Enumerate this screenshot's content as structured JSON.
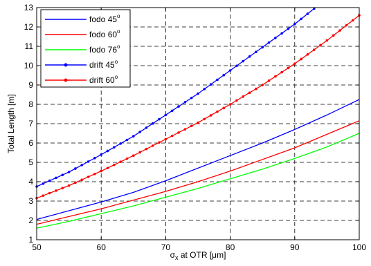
{
  "chart_data": {
    "type": "line",
    "xlabel_prefix": "σ",
    "xlabel_sub": "x",
    "xlabel_suffix": " at OTR [μm]",
    "ylabel": "Total Length [m]",
    "xlim": [
      50,
      100
    ],
    "ylim": [
      1,
      13
    ],
    "xticks": [
      50,
      60,
      70,
      80,
      90,
      100
    ],
    "yticks": [
      1,
      2,
      3,
      4,
      5,
      6,
      7,
      8,
      9,
      10,
      11,
      12,
      13
    ],
    "grid": true,
    "grid_style": "dashed",
    "legend_position": "top-left",
    "series": [
      {
        "name": "fodo 45",
        "name_sup": "o",
        "color": "#0000ff",
        "marker": "none",
        "x": [
          50,
          55,
          60,
          65,
          70,
          75,
          80,
          85,
          90,
          95,
          100
        ],
        "y": [
          2.05,
          2.5,
          2.95,
          3.45,
          4.05,
          4.7,
          5.35,
          6.0,
          6.7,
          7.45,
          8.25
        ]
      },
      {
        "name": "fodo 60",
        "name_sup": "o",
        "color": "#ff0000",
        "marker": "none",
        "x": [
          50,
          55,
          60,
          65,
          70,
          75,
          80,
          85,
          90,
          95,
          100
        ],
        "y": [
          1.8,
          2.2,
          2.6,
          3.05,
          3.5,
          4.0,
          4.55,
          5.15,
          5.75,
          6.45,
          7.15
        ]
      },
      {
        "name": "fodo 76",
        "name_sup": "o",
        "color": "#00ff00",
        "marker": "none",
        "x": [
          50,
          55,
          60,
          65,
          70,
          75,
          80,
          85,
          90,
          95,
          100
        ],
        "y": [
          1.6,
          1.95,
          2.35,
          2.75,
          3.2,
          3.65,
          4.15,
          4.65,
          5.2,
          5.8,
          6.5
        ]
      },
      {
        "name": "drift 45",
        "name_sup": "o",
        "color": "#0000ff",
        "marker": "dot",
        "x": [
          50,
          55,
          60,
          65,
          70,
          75,
          80,
          85,
          90,
          93.2
        ],
        "y": [
          3.75,
          4.5,
          5.4,
          6.35,
          7.45,
          8.55,
          9.75,
          10.95,
          12.15,
          13.0
        ]
      },
      {
        "name": "drift 60",
        "name_sup": "o",
        "color": "#ff0000",
        "marker": "dot",
        "x": [
          50,
          55,
          60,
          65,
          70,
          75,
          80,
          85,
          90,
          95,
          100
        ],
        "y": [
          3.15,
          3.8,
          4.55,
          5.35,
          6.2,
          7.05,
          8.0,
          9.0,
          10.1,
          11.3,
          12.6
        ]
      }
    ]
  }
}
